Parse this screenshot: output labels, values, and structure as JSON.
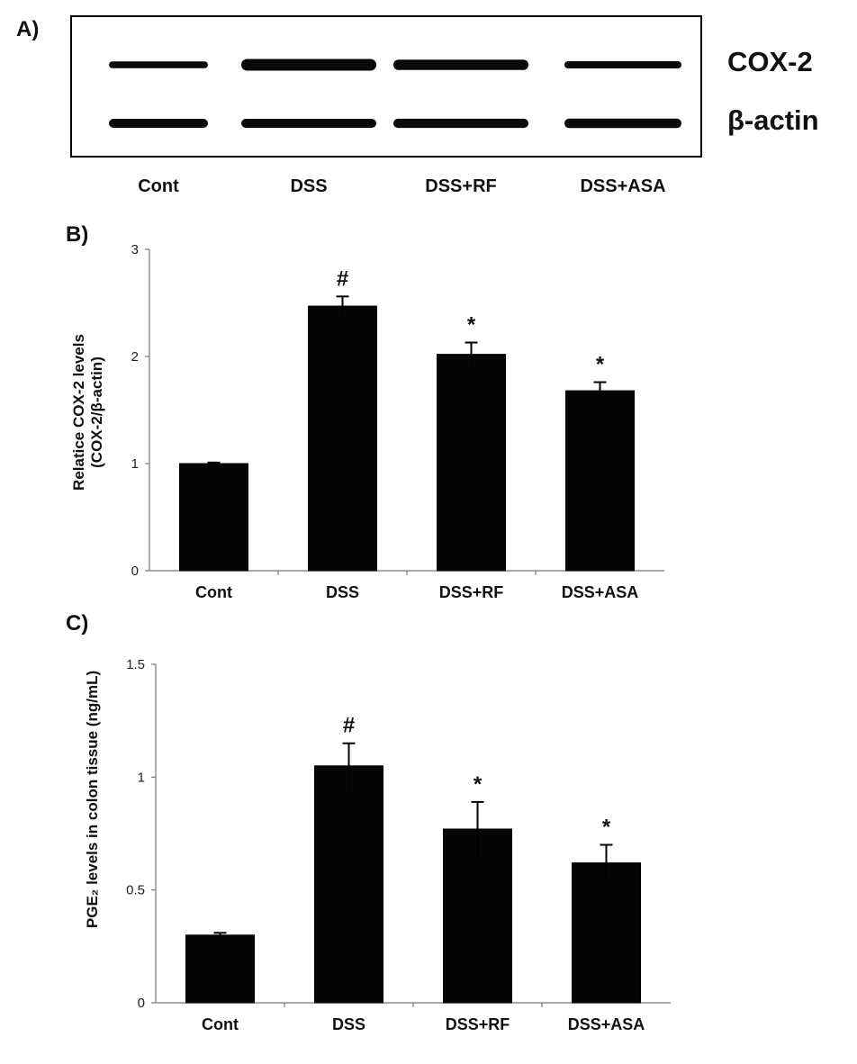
{
  "panel_a": {
    "label": "A)",
    "lanes": [
      "Cont",
      "DSS",
      "DSS+RF",
      "DSS+ASA"
    ],
    "rows": [
      {
        "name": "COX-2",
        "intensity": [
          0.45,
          1.0,
          0.85,
          0.5
        ]
      },
      {
        "name": "β-actin",
        "intensity": [
          0.7,
          0.7,
          0.72,
          0.75
        ]
      }
    ]
  },
  "chart_data": [
    {
      "type": "bar",
      "panel": "B)",
      "categories": [
        "Cont",
        "DSS",
        "DSS+RF",
        "DSS+ASA"
      ],
      "values": [
        1.0,
        2.47,
        2.02,
        1.68
      ],
      "errors": [
        0.01,
        0.09,
        0.11,
        0.08
      ],
      "significance": [
        "",
        "#",
        "*",
        "*"
      ],
      "ylabel_line1": "Relatice COX-2 levels",
      "ylabel_line2": "(COX-2/β-actin)",
      "yticks": [
        0,
        1,
        2,
        3
      ],
      "ytick_labels": [
        "0",
        "1",
        "2",
        "3"
      ],
      "ylim": [
        0,
        3
      ]
    },
    {
      "type": "bar",
      "panel": "C)",
      "categories": [
        "Cont",
        "DSS",
        "DSS+RF",
        "DSS+ASA"
      ],
      "values": [
        0.3,
        1.05,
        0.77,
        0.62
      ],
      "errors": [
        0.01,
        0.1,
        0.12,
        0.08
      ],
      "significance": [
        "",
        "#",
        "*",
        "*"
      ],
      "ylabel": "PGE₂ levels in colon tissue (ng/mL)",
      "yticks": [
        0,
        0.5,
        1,
        1.5
      ],
      "ytick_labels": [
        "0",
        "0.5",
        "1",
        "1.5"
      ],
      "ylim": [
        0,
        1.5
      ]
    }
  ]
}
